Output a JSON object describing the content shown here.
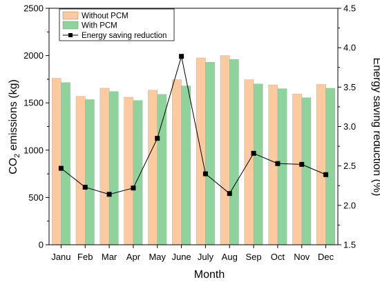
{
  "chart_data": {
    "type": "bar",
    "xlabel": "Month",
    "ylabel": "CO",
    "ylabel_sub": "2",
    "ylabel_suffix": " emissions (kg)",
    "y2label": "Energy saving reduction (%)",
    "categories": [
      "Janu",
      "Feb",
      "Mar",
      "Apr",
      "May",
      "June",
      "July",
      "Aug",
      "Sep",
      "Oct",
      "Nov",
      "Dec"
    ],
    "ylim": [
      0,
      2500
    ],
    "yticks": [
      0,
      500,
      1000,
      1500,
      2000,
      2500
    ],
    "y2lim": [
      1.5,
      4.5
    ],
    "y2ticks": [
      "1.5",
      "2.0",
      "2.5",
      "3.0",
      "3.5",
      "4.0",
      "4.5"
    ],
    "legend_position": "top-left",
    "series": [
      {
        "name": "Without PCM",
        "kind": "bar",
        "axis": "left",
        "color": "#FDC99E",
        "values": [
          1760,
          1570,
          1655,
          1560,
          1635,
          1745,
          1975,
          2000,
          1745,
          1690,
          1595,
          1695
        ]
      },
      {
        "name": "With PCM",
        "kind": "bar",
        "axis": "left",
        "color": "#8ED39C",
        "values": [
          1715,
          1535,
          1620,
          1525,
          1590,
          1680,
          1930,
          1960,
          1700,
          1650,
          1555,
          1655
        ]
      },
      {
        "name": "Energy saving reduction",
        "kind": "line",
        "axis": "right",
        "color": "#000000",
        "values": [
          2.47,
          2.23,
          2.14,
          2.22,
          2.85,
          3.89,
          2.4,
          2.15,
          2.66,
          2.53,
          2.52,
          2.39
        ]
      }
    ]
  }
}
